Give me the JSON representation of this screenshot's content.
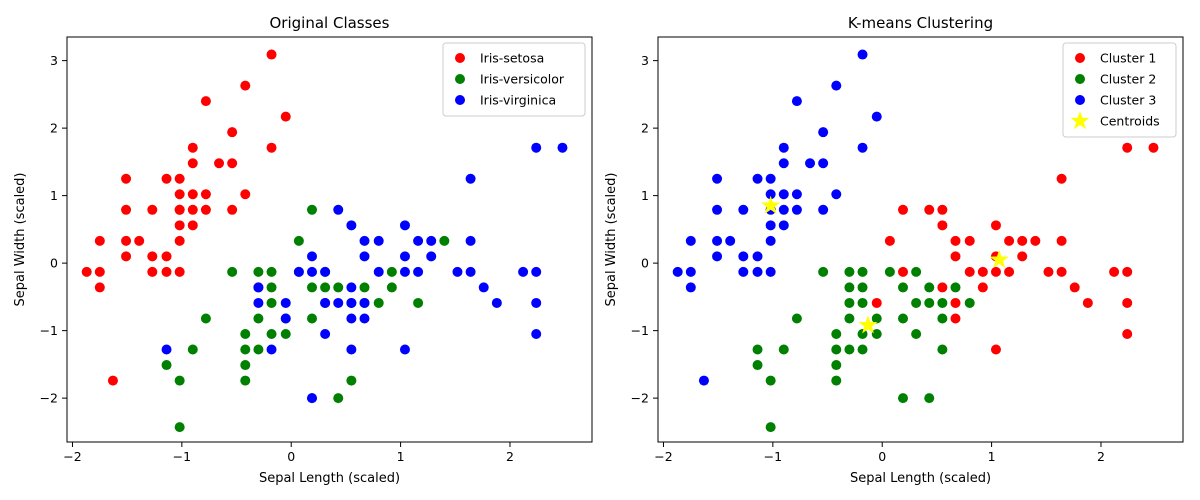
{
  "chart_data": [
    {
      "type": "scatter",
      "title": "Original Classes",
      "xlabel": "Sepal Length (scaled)",
      "ylabel": "Sepal Width (scaled)",
      "xlim": [
        -2.05,
        2.75
      ],
      "ylim": [
        -2.65,
        3.35
      ],
      "xticks": [
        -2,
        -1,
        0,
        1,
        2
      ],
      "yticks": [
        -2,
        -1,
        0,
        1,
        2,
        3
      ],
      "grid": false,
      "legend": "top-right",
      "series": [
        {
          "name": "Iris-setosa",
          "color": "#ff0000",
          "x": [
            -1.87,
            -1.75,
            -1.75,
            -1.75,
            -1.51,
            -1.51,
            -1.51,
            -1.51,
            -1.39,
            -1.27,
            -1.27,
            -1.27,
            -1.14,
            -1.14,
            -1.14,
            -1.02,
            -1.02,
            -1.02,
            -1.02,
            -1.02,
            -1.02,
            -0.9,
            -0.9,
            -0.9,
            -0.9,
            -0.9,
            -0.78,
            -0.78,
            -0.78,
            -0.66,
            -0.54,
            -0.54,
            -0.54,
            -0.42,
            -0.42,
            -0.18,
            -0.18,
            -0.05,
            -1.63,
            -1.02
          ],
          "y": [
            -0.13,
            -0.13,
            0.33,
            -0.36,
            0.1,
            0.33,
            0.79,
            1.25,
            0.33,
            -0.13,
            0.1,
            0.79,
            -0.13,
            0.1,
            1.25,
            -0.13,
            0.33,
            0.56,
            0.79,
            1.02,
            1.25,
            0.56,
            0.79,
            1.02,
            1.48,
            1.71,
            0.79,
            1.02,
            2.4,
            1.48,
            0.79,
            1.48,
            1.94,
            1.02,
            2.63,
            1.71,
            3.09,
            2.17,
            -1.74,
            0.79
          ]
        },
        {
          "name": "Iris-versicolor",
          "color": "#008000",
          "x": [
            -1.14,
            -1.02,
            -1.02,
            -0.9,
            -0.78,
            -0.54,
            -0.42,
            -0.42,
            -0.42,
            -0.42,
            -0.3,
            -0.3,
            -0.3,
            -0.3,
            -0.18,
            -0.18,
            -0.18,
            -0.18,
            -0.05,
            -0.05,
            0.07,
            0.07,
            0.19,
            0.19,
            0.19,
            0.19,
            0.31,
            0.31,
            0.31,
            0.43,
            0.43,
            0.55,
            0.55,
            0.67,
            0.67,
            0.8,
            0.92,
            0.92,
            1.16,
            1.4
          ],
          "y": [
            -1.51,
            -1.74,
            -2.43,
            -1.28,
            -0.82,
            -0.13,
            -1.05,
            -1.28,
            -1.51,
            -1.74,
            -0.13,
            -0.36,
            -0.82,
            -1.28,
            -0.13,
            -0.36,
            -0.59,
            -1.05,
            -0.82,
            -1.05,
            0.33,
            -0.13,
            -0.36,
            -0.82,
            0.79,
            -2.0,
            -0.36,
            -0.59,
            -0.13,
            -0.36,
            -2.0,
            -0.59,
            -1.74,
            -0.36,
            -0.59,
            -0.59,
            -0.13,
            -0.36,
            -0.59,
            0.33
          ]
        },
        {
          "name": "Iris-virginica",
          "color": "#0000ff",
          "x": [
            -1.14,
            -0.3,
            -0.3,
            -0.18,
            -0.05,
            -0.05,
            0.07,
            0.19,
            0.19,
            0.19,
            0.31,
            0.31,
            0.31,
            0.43,
            0.43,
            0.55,
            0.55,
            0.55,
            0.55,
            0.55,
            0.67,
            0.67,
            0.67,
            0.67,
            0.8,
            0.8,
            1.04,
            1.04,
            1.04,
            1.04,
            1.16,
            1.16,
            1.28,
            1.28,
            1.52,
            1.64,
            1.64,
            1.64,
            1.76,
            1.88,
            2.12,
            2.24,
            2.24,
            2.24,
            2.24,
            2.48
          ],
          "y": [
            -1.28,
            -0.36,
            -0.59,
            -1.28,
            -0.59,
            -0.82,
            -0.13,
            -0.13,
            0.1,
            -2.0,
            -0.13,
            -0.59,
            -1.05,
            -0.59,
            0.79,
            -0.36,
            -0.59,
            -0.82,
            -1.28,
            0.56,
            -0.59,
            -0.82,
            0.1,
            0.33,
            -0.13,
            0.33,
            -0.13,
            0.1,
            0.56,
            -1.28,
            -0.13,
            0.33,
            0.1,
            0.33,
            -0.13,
            -0.13,
            0.33,
            1.25,
            -0.36,
            -0.59,
            -0.13,
            -0.13,
            -0.59,
            -1.05,
            1.71,
            1.71
          ]
        }
      ]
    },
    {
      "type": "scatter",
      "title": "K-means Clustering",
      "xlabel": "Sepal Length (scaled)",
      "ylabel": "Sepal Width (scaled)",
      "xlim": [
        -2.05,
        2.75
      ],
      "ylim": [
        -2.65,
        3.35
      ],
      "xticks": [
        -2,
        -1,
        0,
        1,
        2
      ],
      "yticks": [
        -2,
        -1,
        0,
        1,
        2,
        3
      ],
      "grid": false,
      "legend": "top-right",
      "series": [
        {
          "name": "Cluster 1",
          "color": "#ff0000",
          "x": [
            -0.05,
            0.07,
            0.19,
            0.19,
            0.43,
            0.55,
            0.55,
            0.55,
            0.67,
            0.67,
            0.67,
            0.67,
            0.8,
            0.8,
            0.92,
            0.92,
            1.04,
            1.04,
            1.04,
            1.04,
            1.16,
            1.16,
            1.28,
            1.28,
            1.4,
            1.52,
            1.64,
            1.64,
            1.64,
            1.76,
            1.88,
            2.12,
            2.24,
            2.24,
            2.24,
            2.24,
            2.48
          ],
          "y": [
            -0.59,
            0.33,
            -0.13,
            0.79,
            0.79,
            -0.36,
            0.56,
            0.79,
            -0.59,
            -0.82,
            0.1,
            0.33,
            -0.13,
            0.33,
            -0.13,
            -0.36,
            -0.13,
            0.1,
            0.56,
            -1.28,
            -0.13,
            0.33,
            0.1,
            0.33,
            0.33,
            -0.13,
            -0.13,
            0.33,
            1.25,
            -0.36,
            -0.59,
            -0.13,
            -0.13,
            -0.59,
            -1.05,
            1.71,
            1.71
          ]
        },
        {
          "name": "Cluster 2",
          "color": "#008000",
          "x": [
            -1.14,
            -1.14,
            -1.02,
            -1.02,
            -0.9,
            -0.78,
            -0.54,
            -0.42,
            -0.42,
            -0.42,
            -0.42,
            -0.3,
            -0.3,
            -0.3,
            -0.3,
            -0.3,
            -0.18,
            -0.18,
            -0.18,
            -0.18,
            -0.18,
            -0.05,
            -0.05,
            0.07,
            0.19,
            0.19,
            0.19,
            0.31,
            0.31,
            0.31,
            0.43,
            0.43,
            0.43,
            0.55,
            0.55,
            0.55,
            0.67,
            0.8
          ],
          "y": [
            -1.28,
            -1.51,
            -1.74,
            -2.43,
            -1.28,
            -0.82,
            -0.13,
            -1.05,
            -1.28,
            -1.51,
            -1.74,
            -0.13,
            -0.36,
            -0.59,
            -0.82,
            -1.28,
            -0.13,
            -0.36,
            -0.59,
            -1.05,
            -1.28,
            -0.82,
            -1.05,
            -0.13,
            -0.36,
            -0.82,
            -2.0,
            -0.13,
            -0.59,
            -1.05,
            -0.36,
            -0.59,
            -2.0,
            -0.59,
            -0.82,
            -1.28,
            -0.36,
            -0.59
          ]
        },
        {
          "name": "Cluster 3",
          "color": "#0000ff",
          "x": [
            -1.87,
            -1.75,
            -1.75,
            -1.75,
            -1.63,
            -1.51,
            -1.51,
            -1.51,
            -1.51,
            -1.39,
            -1.27,
            -1.27,
            -1.27,
            -1.14,
            -1.14,
            -1.14,
            -1.02,
            -1.02,
            -1.02,
            -1.02,
            -1.02,
            -1.02,
            -0.9,
            -0.9,
            -0.9,
            -0.9,
            -0.9,
            -0.78,
            -0.78,
            -0.78,
            -0.66,
            -0.54,
            -0.54,
            -0.54,
            -0.42,
            -0.42,
            -0.18,
            -0.18,
            -0.05
          ],
          "y": [
            -0.13,
            -0.13,
            0.33,
            -0.36,
            -1.74,
            0.1,
            0.33,
            0.79,
            1.25,
            0.33,
            -0.13,
            0.1,
            0.79,
            -0.13,
            0.1,
            1.25,
            -0.13,
            0.33,
            0.56,
            0.79,
            1.02,
            1.25,
            0.56,
            0.79,
            1.02,
            1.48,
            1.71,
            0.79,
            1.02,
            2.4,
            1.48,
            0.79,
            1.48,
            1.94,
            1.02,
            2.63,
            1.71,
            3.09,
            2.17
          ]
        },
        {
          "name": "Centroids",
          "color": "#ffff00",
          "marker": "star",
          "x": [
            -1.02,
            -0.13,
            1.07
          ],
          "y": [
            0.85,
            -0.92,
            0.05
          ]
        }
      ]
    }
  ]
}
